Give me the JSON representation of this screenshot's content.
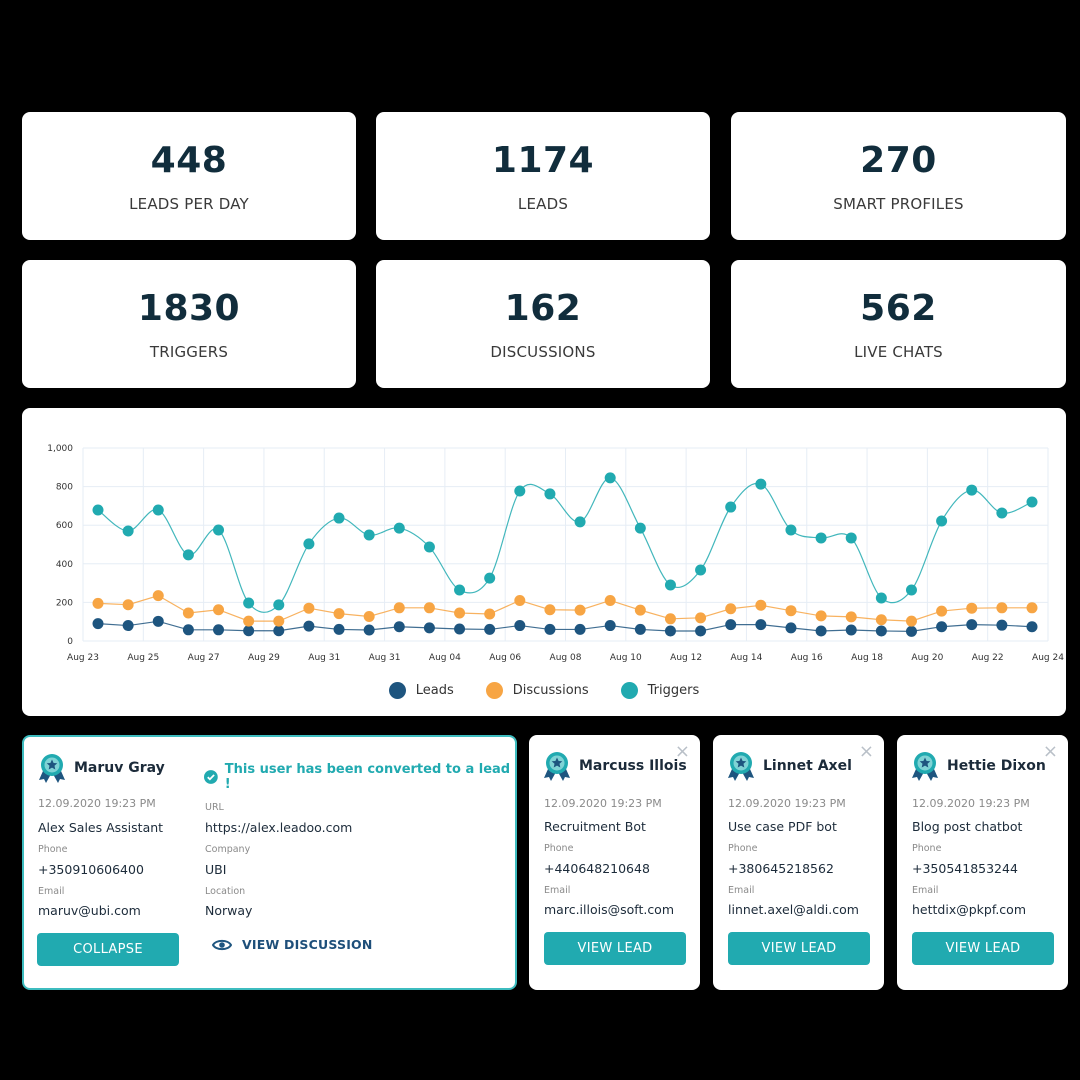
{
  "colors": {
    "leads": "#1e557f",
    "discussions": "#f7a544",
    "triggers": "#21aab0",
    "accent": "#21aab0",
    "dark_text": "#112d3c"
  },
  "stats": [
    {
      "value": "448",
      "label": "LEADS PER DAY"
    },
    {
      "value": "1174",
      "label": "LEADS"
    },
    {
      "value": "270",
      "label": "SMART PROFILES"
    },
    {
      "value": "1830",
      "label": "TRIGGERS"
    },
    {
      "value": "162",
      "label": "DISCUSSIONS"
    },
    {
      "value": "562",
      "label": "LIVE CHATS"
    }
  ],
  "chart_data": {
    "type": "line",
    "title": "",
    "xlabel": "",
    "ylabel": "",
    "ylim": [
      0,
      1000
    ],
    "yticks": [
      "0",
      "200",
      "400",
      "600",
      "800",
      "1,000"
    ],
    "xtick_labels": [
      "Aug 23",
      "Aug 25",
      "Aug 27",
      "Aug 29",
      "Aug 31",
      "Aug 31",
      "Aug 04",
      "Aug 06",
      "Aug 08",
      "Aug 10",
      "Aug 12",
      "Aug 14",
      "Aug 16",
      "Aug 18",
      "Aug 20",
      "Aug 22",
      "Aug 24"
    ],
    "grid": true,
    "legend_position": "bottom",
    "series": [
      {
        "name": "Leads",
        "color": "#1e557f",
        "values": [
          90,
          80,
          102,
          58,
          58,
          53,
          53,
          77,
          60,
          57,
          74,
          68,
          62,
          60,
          80,
          60,
          60,
          80,
          60,
          52,
          52,
          85,
          85,
          68,
          52,
          57,
          52,
          50,
          74,
          85,
          82,
          74
        ]
      },
      {
        "name": "Discussions",
        "color": "#f7a544",
        "values": [
          195,
          188,
          235,
          145,
          162,
          103,
          103,
          170,
          142,
          127,
          172,
          172,
          145,
          140,
          210,
          162,
          160,
          210,
          160,
          115,
          120,
          167,
          185,
          157,
          130,
          125,
          110,
          103,
          155,
          170,
          172,
          172
        ]
      },
      {
        "name": "Triggers",
        "color": "#21aab0",
        "values": [
          679,
          570,
          679,
          446,
          575,
          197,
          187,
          503,
          637,
          549,
          585,
          487,
          264,
          326,
          777,
          762,
          617,
          845,
          585,
          290,
          368,
          694,
          813,
          575,
          534,
          534,
          223,
          264,
          622,
          782,
          663,
          720
        ]
      }
    ]
  },
  "expanded_lead": {
    "name": "Maruv Gray",
    "converted_text": "This user has been converted to a lead !",
    "date": "12.09.2020 19:23 PM",
    "bot": "Alex Sales Assistant",
    "phone_label": "Phone",
    "phone": "+350910606400",
    "email_label": "Email",
    "email": "maruv@ubi.com",
    "url_label": "URL",
    "url": "https://alex.leadoo.com",
    "company_label": "Company",
    "company": "UBI",
    "location_label": "Location",
    "location": "Norway",
    "collapse_label": "COLLAPSE",
    "view_discussion_label": "VIEW DISCUSSION"
  },
  "lead_cards": [
    {
      "name": "Marcuss Illois",
      "date": "12.09.2020 19:23 PM",
      "bot": "Recruitment Bot",
      "phone_label": "Phone",
      "phone": "+440648210648",
      "email_label": "Email",
      "email": "marc.illois@soft.com",
      "button": "VIEW LEAD",
      "close": "×"
    },
    {
      "name": "Linnet Axel",
      "date": "12.09.2020 19:23 PM",
      "bot": "Use case PDF bot",
      "phone_label": "Phone",
      "phone": "+380645218562",
      "email_label": "Email",
      "email": "linnet.axel@aldi.com",
      "button": "VIEW LEAD",
      "close": "×"
    },
    {
      "name": "Hettie Dixon",
      "date": "12.09.2020 19:23 PM",
      "bot": "Blog post chatbot",
      "phone_label": "Phone",
      "phone": "+350541853244",
      "email_label": "Email",
      "email": "hettdix@pkpf.com",
      "button": "VIEW LEAD",
      "close": "×"
    }
  ]
}
